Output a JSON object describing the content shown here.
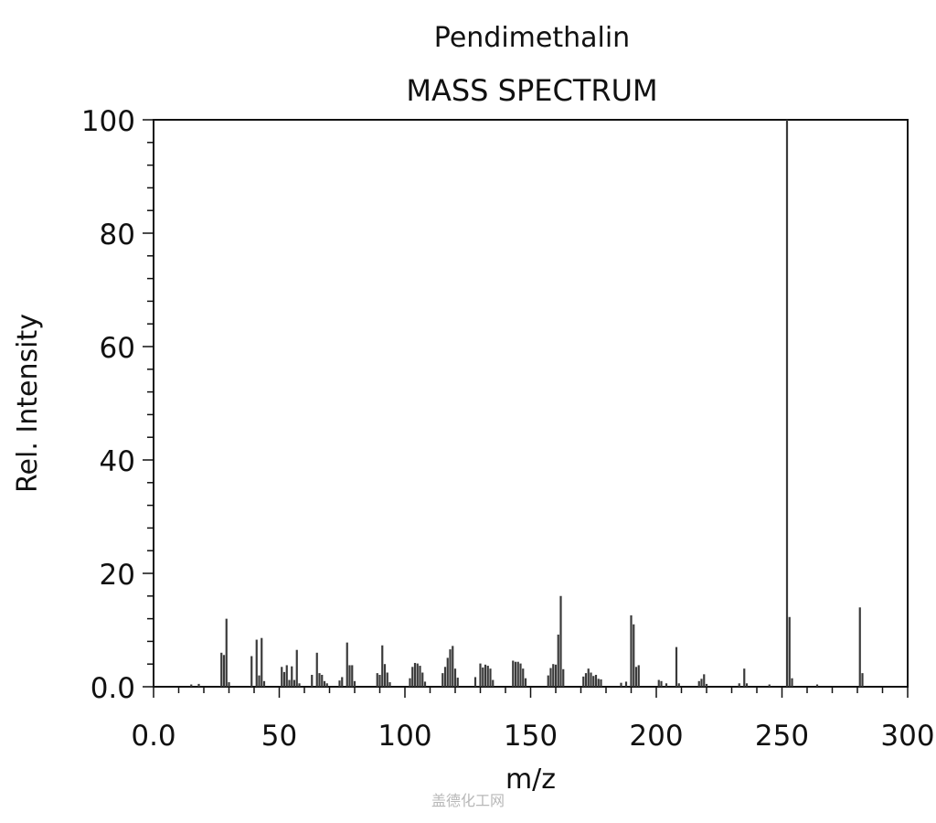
{
  "chart_data": {
    "type": "bar",
    "title": "Pendimethalin",
    "subtitle": "MASS SPECTRUM",
    "xlabel": "m/z",
    "ylabel": "Rel. Intensity",
    "xlim": [
      0,
      300
    ],
    "ylim": [
      0,
      100
    ],
    "x_ticks": [
      "0.0",
      "50",
      "100",
      "150",
      "200",
      "250",
      "300"
    ],
    "y_ticks": [
      "0.0",
      "20",
      "40",
      "60",
      "80",
      "100"
    ],
    "grid": false,
    "bar_color": "#3a3a3a",
    "peaks": [
      [
        15,
        0.4
      ],
      [
        18,
        0.5
      ],
      [
        27,
        6.0
      ],
      [
        28,
        5.6
      ],
      [
        29,
        12.0
      ],
      [
        30,
        0.8
      ],
      [
        39,
        5.4
      ],
      [
        41,
        8.3
      ],
      [
        42,
        2.0
      ],
      [
        43,
        8.6
      ],
      [
        44,
        1.0
      ],
      [
        51,
        3.5
      ],
      [
        52,
        2.6
      ],
      [
        53,
        3.8
      ],
      [
        54,
        1.2
      ],
      [
        55,
        3.6
      ],
      [
        56,
        1.2
      ],
      [
        57,
        6.5
      ],
      [
        58,
        0.6
      ],
      [
        63,
        2.1
      ],
      [
        65,
        6.0
      ],
      [
        66,
        2.4
      ],
      [
        67,
        2.1
      ],
      [
        68,
        1.0
      ],
      [
        69,
        0.6
      ],
      [
        74,
        1.1
      ],
      [
        75,
        1.7
      ],
      [
        77,
        7.8
      ],
      [
        78,
        3.8
      ],
      [
        79,
        3.8
      ],
      [
        80,
        1.0
      ],
      [
        89,
        2.4
      ],
      [
        90,
        2.1
      ],
      [
        91,
        7.3
      ],
      [
        92,
        4.0
      ],
      [
        93,
        2.5
      ],
      [
        94,
        0.8
      ],
      [
        102,
        1.5
      ],
      [
        103,
        3.5
      ],
      [
        104,
        4.2
      ],
      [
        105,
        4.1
      ],
      [
        106,
        3.7
      ],
      [
        107,
        2.5
      ],
      [
        108,
        0.9
      ],
      [
        115,
        2.4
      ],
      [
        116,
        3.5
      ],
      [
        117,
        5.1
      ],
      [
        118,
        6.6
      ],
      [
        119,
        7.2
      ],
      [
        120,
        3.2
      ],
      [
        121,
        1.6
      ],
      [
        128,
        1.7
      ],
      [
        130,
        4.1
      ],
      [
        131,
        3.4
      ],
      [
        132,
        3.9
      ],
      [
        133,
        3.7
      ],
      [
        134,
        3.2
      ],
      [
        135,
        1.2
      ],
      [
        143,
        4.6
      ],
      [
        144,
        4.4
      ],
      [
        145,
        4.4
      ],
      [
        146,
        4.1
      ],
      [
        147,
        3.2
      ],
      [
        148,
        1.5
      ],
      [
        157,
        2.0
      ],
      [
        158,
        3.3
      ],
      [
        159,
        4.0
      ],
      [
        160,
        3.9
      ],
      [
        161,
        9.2
      ],
      [
        162,
        16.0
      ],
      [
        163,
        3.1
      ],
      [
        171,
        1.8
      ],
      [
        172,
        2.4
      ],
      [
        173,
        3.2
      ],
      [
        174,
        2.5
      ],
      [
        175,
        1.9
      ],
      [
        176,
        2.1
      ],
      [
        177,
        1.4
      ],
      [
        178,
        1.3
      ],
      [
        186,
        0.7
      ],
      [
        188,
        0.9
      ],
      [
        190,
        12.6
      ],
      [
        191,
        11.0
      ],
      [
        192,
        3.5
      ],
      [
        193,
        3.8
      ],
      [
        201,
        1.2
      ],
      [
        202,
        1.0
      ],
      [
        204,
        0.6
      ],
      [
        208,
        7.0
      ],
      [
        209,
        0.6
      ],
      [
        217,
        1.0
      ],
      [
        218,
        1.4
      ],
      [
        219,
        2.2
      ],
      [
        220,
        0.5
      ],
      [
        233,
        0.6
      ],
      [
        235,
        3.2
      ],
      [
        236,
        0.6
      ],
      [
        245,
        0.4
      ],
      [
        252,
        100.0
      ],
      [
        253,
        12.3
      ],
      [
        254,
        1.5
      ],
      [
        264,
        0.4
      ],
      [
        281,
        14.0
      ],
      [
        282,
        2.4
      ]
    ]
  },
  "watermark": "盖德化工网"
}
